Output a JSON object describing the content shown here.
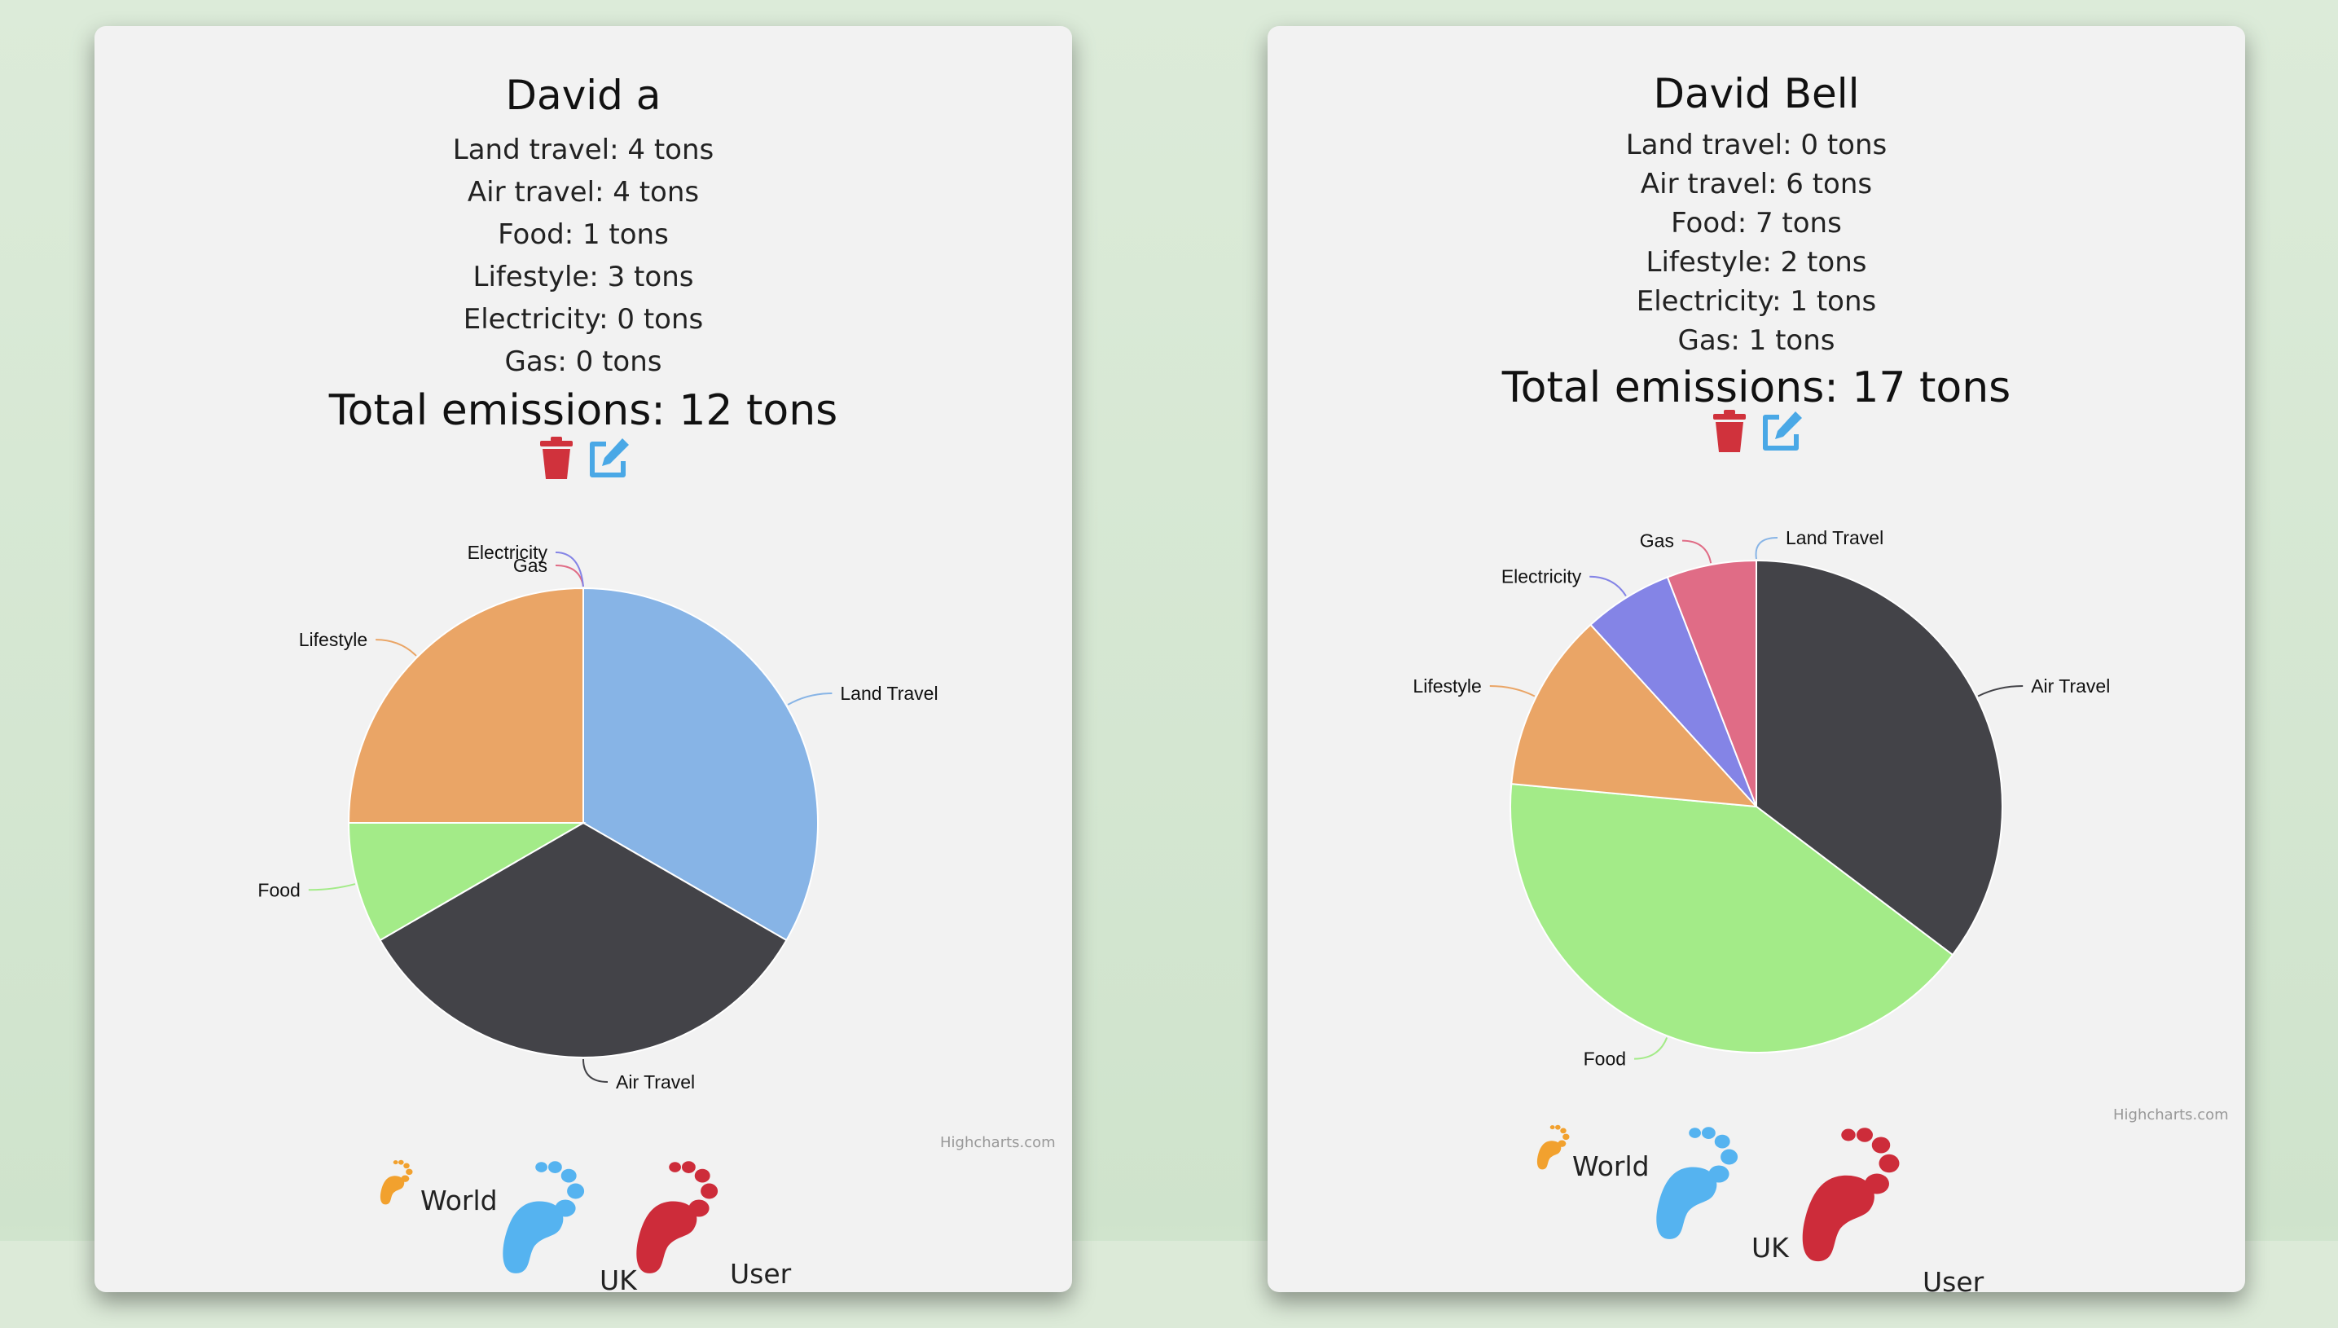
{
  "chart_data": [
    {
      "type": "pie",
      "title": "David a",
      "lines": [
        "Land travel: 4 tons",
        "Air travel: 4 tons",
        "Food: 1 tons",
        "Lifestyle: 3 tons",
        "Electricity: 0 tons",
        "Gas: 0 tons"
      ],
      "total_text": "Total emissions: 12 tons",
      "series": [
        {
          "name": "Land Travel",
          "value": 4,
          "color": "#87b4e6"
        },
        {
          "name": "Air Travel",
          "value": 4,
          "color": "#434348"
        },
        {
          "name": "Food",
          "value": 1,
          "color": "#a3eb88"
        },
        {
          "name": "Lifestyle",
          "value": 3,
          "color": "#eaa566"
        },
        {
          "name": "Gas",
          "value": 0,
          "color": "#e06c86"
        },
        {
          "name": "Electricity",
          "value": 0,
          "color": "#8484e6"
        }
      ],
      "credit": "Highcharts.com",
      "legend": {
        "world": "World",
        "uk": "UK",
        "user": "User"
      }
    },
    {
      "type": "pie",
      "title": "David Bell",
      "lines": [
        "Land travel: 0 tons",
        "Air travel: 6 tons",
        "Food: 7 tons",
        "Lifestyle: 2 tons",
        "Electricity: 1 tons",
        "Gas: 1 tons"
      ],
      "total_text": "Total emissions: 17 tons",
      "series": [
        {
          "name": "Land Travel",
          "value": 0,
          "color": "#87b4e6"
        },
        {
          "name": "Air Travel",
          "value": 6,
          "color": "#434348"
        },
        {
          "name": "Food",
          "value": 7,
          "color": "#a3eb88"
        },
        {
          "name": "Lifestyle",
          "value": 2,
          "color": "#eaa566"
        },
        {
          "name": "Electricity",
          "value": 1,
          "color": "#8484e6"
        },
        {
          "name": "Gas",
          "value": 1,
          "color": "#e06c86"
        }
      ],
      "credit": "Highcharts.com",
      "legend": {
        "world": "World",
        "uk": "UK",
        "user": "User"
      }
    }
  ],
  "icons": {
    "delete": "trash-icon",
    "edit": "edit-icon",
    "world": "footprint-orange-icon",
    "uk": "footprint-blue-icon",
    "user": "footprint-red-icon"
  },
  "colors": {
    "delete": "#d0323c",
    "edit": "#4aa8e6",
    "world": "#f2a12e",
    "uk": "#55b3f0",
    "user": "#cd2c3a"
  }
}
